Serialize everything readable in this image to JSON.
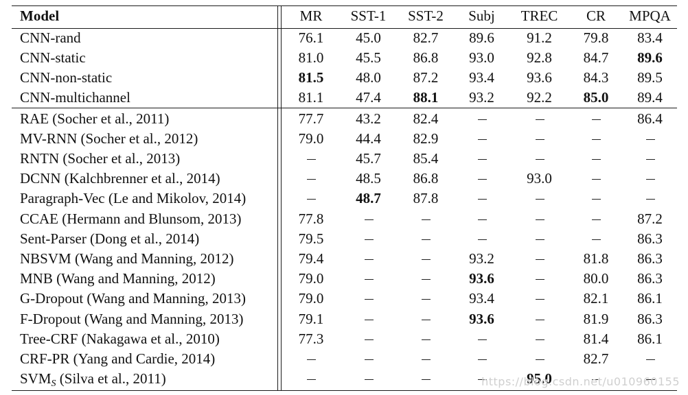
{
  "table": {
    "headers": [
      "Model",
      "MR",
      "SST-1",
      "SST-2",
      "Subj",
      "TREC",
      "CR",
      "MPQA"
    ],
    "rows": [
      {
        "model": "CNN-rand",
        "values": [
          "76.1",
          "45.0",
          "82.7",
          "89.6",
          "91.2",
          "79.8",
          "83.4"
        ],
        "bold": []
      },
      {
        "model": "CNN-static",
        "values": [
          "81.0",
          "45.5",
          "86.8",
          "93.0",
          "92.8",
          "84.7",
          "89.6"
        ],
        "bold": [
          6
        ]
      },
      {
        "model": "CNN-non-static",
        "values": [
          "81.5",
          "48.0",
          "87.2",
          "93.4",
          "93.6",
          "84.3",
          "89.5"
        ],
        "bold": [
          0
        ]
      },
      {
        "model": "CNN-multichannel",
        "values": [
          "81.1",
          "47.4",
          "88.1",
          "93.2",
          "92.2",
          "85.0",
          "89.4"
        ],
        "bold": [
          2,
          5
        ]
      },
      {
        "model": "RAE (Socher et al., 2011)",
        "values": [
          "77.7",
          "43.2",
          "82.4",
          "–",
          "–",
          "–",
          "86.4"
        ],
        "bold": []
      },
      {
        "model": "MV-RNN (Socher et al., 2012)",
        "values": [
          "79.0",
          "44.4",
          "82.9",
          "–",
          "–",
          "–",
          "–"
        ],
        "bold": []
      },
      {
        "model": "RNTN (Socher et al., 2013)",
        "values": [
          "–",
          "45.7",
          "85.4",
          "–",
          "–",
          "–",
          "–"
        ],
        "bold": []
      },
      {
        "model": "DCNN (Kalchbrenner et al., 2014)",
        "values": [
          "–",
          "48.5",
          "86.8",
          "–",
          "93.0",
          "–",
          "–"
        ],
        "bold": []
      },
      {
        "model": "Paragraph-Vec (Le and Mikolov, 2014)",
        "values": [
          "–",
          "48.7",
          "87.8",
          "–",
          "–",
          "–",
          "–"
        ],
        "bold": [
          1
        ]
      },
      {
        "model": "CCAE (Hermann and Blunsom, 2013)",
        "values": [
          "77.8",
          "–",
          "–",
          "–",
          "–",
          "–",
          "87.2"
        ],
        "bold": []
      },
      {
        "model": "Sent-Parser (Dong et al., 2014)",
        "values": [
          "79.5",
          "–",
          "–",
          "–",
          "–",
          "–",
          "86.3"
        ],
        "bold": []
      },
      {
        "model": "NBSVM (Wang and Manning, 2012)",
        "values": [
          "79.4",
          "–",
          "–",
          "93.2",
          "–",
          "81.8",
          "86.3"
        ],
        "bold": []
      },
      {
        "model": "MNB (Wang and Manning, 2012)",
        "values": [
          "79.0",
          "–",
          "–",
          "93.6",
          "–",
          "80.0",
          "86.3"
        ],
        "bold": [
          3
        ]
      },
      {
        "model": "G-Dropout (Wang and Manning, 2013)",
        "values": [
          "79.0",
          "–",
          "–",
          "93.4",
          "–",
          "82.1",
          "86.1"
        ],
        "bold": []
      },
      {
        "model": "F-Dropout (Wang and Manning, 2013)",
        "values": [
          "79.1",
          "–",
          "–",
          "93.6",
          "–",
          "81.9",
          "86.3"
        ],
        "bold": [
          3
        ]
      },
      {
        "model": "Tree-CRF (Nakagawa et al., 2010)",
        "values": [
          "77.3",
          "–",
          "–",
          "–",
          "–",
          "81.4",
          "86.1"
        ],
        "bold": []
      },
      {
        "model": "CRF-PR (Yang and Cardie, 2014)",
        "values": [
          "–",
          "–",
          "–",
          "–",
          "–",
          "82.7",
          "–"
        ],
        "bold": []
      },
      {
        "model": "SVMS (Silva et al., 2011)",
        "model_base": "SVM",
        "model_sub": "S",
        "model_rest": " (Silva et al., 2011)",
        "values": [
          "–",
          "–",
          "–",
          "–",
          "95.0",
          "–",
          "–"
        ],
        "bold": [
          4
        ]
      }
    ]
  },
  "watermark": "https://blog.csdn.net/u010960155"
}
